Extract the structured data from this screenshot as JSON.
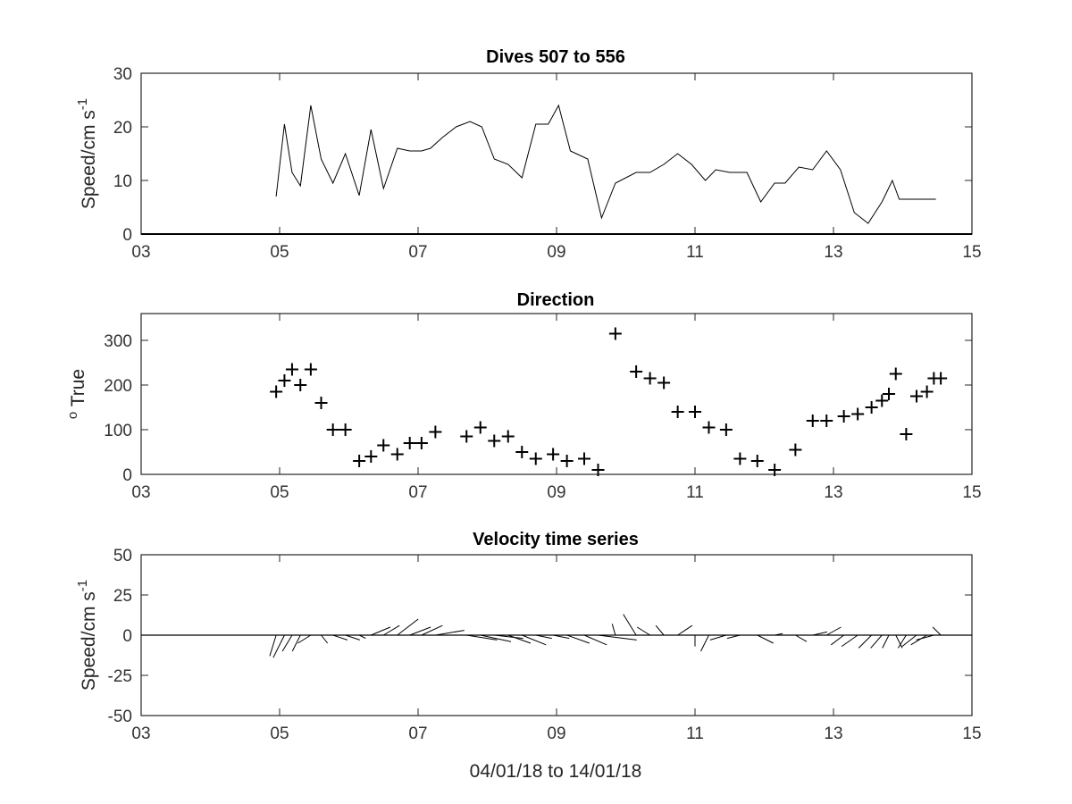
{
  "chart_data": [
    {
      "type": "line",
      "title": "Dives 507 to 556",
      "ylabel": "Speed/cm s",
      "ylabel_superscript": "-1",
      "xlim": [
        3,
        15
      ],
      "ylim": [
        0,
        30
      ],
      "xticks": [
        "03",
        "05",
        "07",
        "09",
        "11",
        "13",
        "15"
      ],
      "yticks": [
        "0",
        "10",
        "20",
        "30"
      ],
      "series": [
        {
          "x": [
            4.95,
            5.07,
            5.18,
            5.3,
            5.45,
            5.6,
            5.77,
            5.95,
            6.15,
            6.32,
            6.5,
            6.7,
            6.88,
            7.05,
            7.18,
            7.35,
            7.55,
            7.75,
            7.92,
            8.1,
            8.3,
            8.5,
            8.7,
            8.88,
            9.03,
            9.2,
            9.45,
            9.65,
            9.85,
            10.15,
            10.35,
            10.55,
            10.75,
            10.95,
            11.15,
            11.3,
            11.5,
            11.75,
            11.95,
            12.15,
            12.3,
            12.5,
            12.7,
            12.9,
            13.1,
            13.3,
            13.5,
            13.7,
            13.85,
            13.95,
            14.05,
            14.15,
            14.35,
            14.48
          ],
          "y": [
            7,
            20.5,
            11.5,
            9,
            24,
            14,
            9.5,
            15,
            7.2,
            19.5,
            8.5,
            16,
            15.5,
            15.5,
            16,
            18,
            20,
            21,
            20,
            14,
            13,
            10.5,
            20.5,
            20.5,
            24,
            15.5,
            14,
            3,
            9.5,
            11.5,
            11.5,
            13,
            15,
            13,
            10,
            12,
            11.5,
            11.5,
            6,
            9.5,
            9.5,
            12.5,
            12,
            15.5,
            12,
            4,
            2,
            6,
            10,
            6.5,
            6.5,
            6.5,
            6.5,
            6.5
          ]
        }
      ]
    },
    {
      "type": "scatter",
      "title": "Direction",
      "ylabel": "True",
      "ylabel_prefix": "o",
      "xlim": [
        3,
        15
      ],
      "ylim": [
        0,
        360
      ],
      "xticks": [
        "03",
        "05",
        "07",
        "09",
        "11",
        "13",
        "15"
      ],
      "yticks": [
        "0",
        "100",
        "200",
        "300"
      ],
      "series": [
        {
          "x": [
            4.95,
            5.07,
            5.18,
            5.3,
            5.45,
            5.6,
            5.77,
            5.95,
            6.15,
            6.32,
            6.5,
            6.7,
            6.88,
            7.05,
            7.25,
            7.7,
            7.9,
            8.1,
            8.3,
            8.5,
            8.7,
            8.95,
            9.15,
            9.4,
            9.6,
            9.85,
            10.15,
            10.35,
            10.55,
            10.75,
            11.0,
            11.2,
            11.45,
            11.65,
            11.9,
            12.15,
            12.45,
            12.7,
            12.9,
            13.15,
            13.35,
            13.55,
            13.7,
            13.8,
            13.9,
            14.05,
            14.2,
            14.35,
            14.45,
            14.55
          ],
          "y": [
            185,
            210,
            235,
            200,
            235,
            160,
            100,
            100,
            30,
            40,
            65,
            45,
            70,
            70,
            95,
            85,
            105,
            75,
            85,
            50,
            35,
            45,
            30,
            35,
            10,
            315,
            230,
            215,
            205,
            140,
            140,
            105,
            100,
            35,
            30,
            10,
            55,
            120,
            120,
            130,
            135,
            150,
            165,
            180,
            225,
            90,
            175,
            185,
            215,
            215
          ]
        }
      ]
    },
    {
      "type": "stick",
      "title": "Velocity time series",
      "ylabel": "Speed/cm s",
      "ylabel_superscript": "-1",
      "xlabel": "04/01/18 to 14/01/18",
      "xlim": [
        3,
        15
      ],
      "ylim": [
        -50,
        50
      ],
      "xticks": [
        "03",
        "05",
        "07",
        "09",
        "11",
        "13",
        "15"
      ],
      "yticks": [
        "-50",
        "-25",
        "0",
        "25",
        "50"
      ],
      "series": [
        {
          "x": [
            4.95,
            5.07,
            5.18,
            5.3,
            5.45,
            5.6,
            5.77,
            5.95,
            6.15,
            6.32,
            6.5,
            6.7,
            6.88,
            7.05,
            7.25,
            7.7,
            7.9,
            8.1,
            8.3,
            8.5,
            8.7,
            8.95,
            9.15,
            9.4,
            9.6,
            9.85,
            10.15,
            10.35,
            10.55,
            10.75,
            11.0,
            11.2,
            11.45,
            11.65,
            11.9,
            12.15,
            12.45,
            12.7,
            12.9,
            13.15,
            13.35,
            13.55,
            13.7,
            13.8,
            13.9,
            14.05,
            14.2,
            14.35,
            14.45,
            14.55
          ],
          "u": [
            -4,
            -7,
            -6,
            -5,
            -8,
            4,
            9,
            9,
            4,
            12,
            10,
            13,
            13,
            13,
            18,
            19,
            19,
            18,
            14,
            15,
            10,
            10,
            14,
            14,
            24,
            -2,
            -8,
            -8,
            -5,
            9,
            0,
            -5,
            -10,
            -8,
            10,
            5,
            7,
            9,
            9,
            -8,
            -10,
            -8,
            -7,
            -4,
            4,
            -5,
            -9,
            -10,
            -11,
            -5
          ],
          "v": [
            -13,
            -14,
            -10,
            -10,
            -5,
            -5,
            -3,
            -3,
            -2,
            5,
            6,
            10,
            5,
            6,
            3,
            -3,
            -4,
            -2,
            -5,
            -6,
            -2,
            -2,
            -5,
            -6,
            -3,
            7,
            13,
            5,
            6,
            6,
            -7,
            -10,
            -3,
            -2,
            -5,
            1,
            -4,
            2,
            5,
            -6,
            -7,
            -8,
            -8,
            -8,
            -8,
            -8,
            -7,
            -6,
            -3,
            5
          ]
        }
      ]
    }
  ]
}
